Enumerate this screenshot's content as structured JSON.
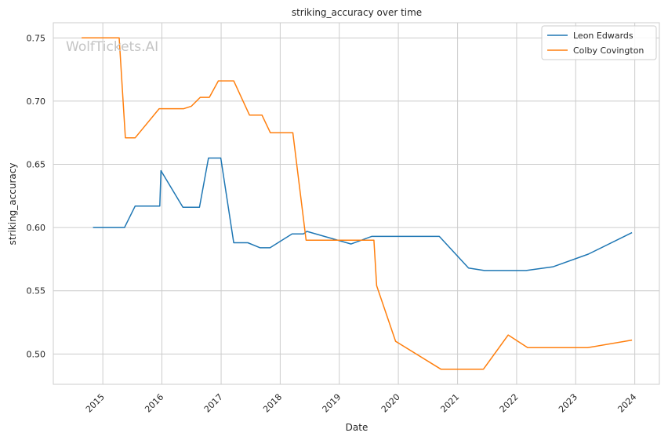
{
  "watermark": "WolfTickets.AI",
  "chart_data": {
    "type": "line",
    "title": "striking_accuracy over time",
    "xlabel": "Date",
    "ylabel": "striking_accuracy",
    "x_axis": "date",
    "xlim": [
      "2014-03-01",
      "2024-06-01"
    ],
    "ylim": [
      0.476,
      0.762
    ],
    "x_ticks": [
      "2015",
      "2016",
      "2017",
      "2018",
      "2019",
      "2020",
      "2021",
      "2022",
      "2023",
      "2024"
    ],
    "y_ticks": [
      "0.50",
      "0.55",
      "0.60",
      "0.65",
      "0.70",
      "0.75"
    ],
    "grid": true,
    "legend_position": "top-right",
    "series": [
      {
        "name": "Leon Edwards",
        "color": "#1f77b4",
        "points": [
          [
            "2014-11-01",
            0.6
          ],
          [
            "2015-05-15",
            0.6
          ],
          [
            "2015-07-20",
            0.617
          ],
          [
            "2015-12-19",
            0.617
          ],
          [
            "2015-12-26",
            0.645
          ],
          [
            "2016-05-10",
            0.616
          ],
          [
            "2016-08-20",
            0.616
          ],
          [
            "2016-10-15",
            0.655
          ],
          [
            "2016-12-30",
            0.655
          ],
          [
            "2017-03-20",
            0.588
          ],
          [
            "2017-06-15",
            0.588
          ],
          [
            "2017-08-30",
            0.584
          ],
          [
            "2017-10-30",
            0.584
          ],
          [
            "2018-03-15",
            0.595
          ],
          [
            "2018-05-25",
            0.595
          ],
          [
            "2018-06-15",
            0.597
          ],
          [
            "2019-03-15",
            0.587
          ],
          [
            "2019-07-20",
            0.593
          ],
          [
            "2020-09-10",
            0.593
          ],
          [
            "2021-03-10",
            0.568
          ],
          [
            "2021-06-15",
            0.566
          ],
          [
            "2022-03-01",
            0.566
          ],
          [
            "2022-08-15",
            0.569
          ],
          [
            "2023-03-20",
            0.579
          ],
          [
            "2023-12-15",
            0.596
          ]
        ]
      },
      {
        "name": "Colby Covington",
        "color": "#ff7f0e",
        "points": [
          [
            "2014-08-23",
            0.75
          ],
          [
            "2015-04-12",
            0.75
          ],
          [
            "2015-05-20",
            0.671
          ],
          [
            "2015-07-20",
            0.671
          ],
          [
            "2015-12-15",
            0.694
          ],
          [
            "2016-05-15",
            0.694
          ],
          [
            "2016-07-01",
            0.696
          ],
          [
            "2016-08-25",
            0.703
          ],
          [
            "2016-10-20",
            0.703
          ],
          [
            "2016-12-15",
            0.716
          ],
          [
            "2017-03-20",
            0.716
          ],
          [
            "2017-06-25",
            0.689
          ],
          [
            "2017-09-10",
            0.689
          ],
          [
            "2017-11-01",
            0.675
          ],
          [
            "2018-03-20",
            0.675
          ],
          [
            "2018-06-10",
            0.59
          ],
          [
            "2019-08-03",
            0.59
          ],
          [
            "2019-08-20",
            0.554
          ],
          [
            "2019-12-15",
            0.51
          ],
          [
            "2020-09-20",
            0.488
          ],
          [
            "2021-06-10",
            0.488
          ],
          [
            "2021-11-10",
            0.515
          ],
          [
            "2022-03-10",
            0.505
          ],
          [
            "2023-03-15",
            0.505
          ],
          [
            "2023-12-15",
            0.511
          ]
        ]
      }
    ]
  }
}
